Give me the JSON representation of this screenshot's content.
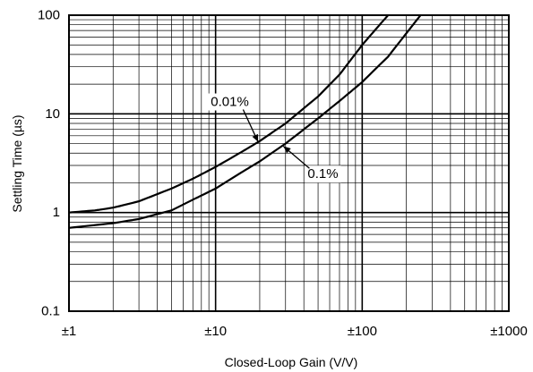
{
  "chart_data": {
    "type": "line",
    "title": "",
    "xlabel": "Closed-Loop Gain (V/V)",
    "ylabel": "Settling Time (µs)",
    "x_scale": "log",
    "y_scale": "log",
    "xlim": [
      1,
      1000
    ],
    "ylim": [
      0.1,
      100
    ],
    "grid": true,
    "x_ticks": [
      {
        "value": 1,
        "label": "±1"
      },
      {
        "value": 10,
        "label": "±10"
      },
      {
        "value": 100,
        "label": "±100"
      },
      {
        "value": 1000,
        "label": "±1000"
      }
    ],
    "y_ticks": [
      {
        "value": 0.1,
        "label": "0.1"
      },
      {
        "value": 1,
        "label": "1"
      },
      {
        "value": 10,
        "label": "10"
      },
      {
        "value": 100,
        "label": "100"
      }
    ],
    "series": [
      {
        "name": "0.01%",
        "x": [
          1,
          1.5,
          2,
          3,
          5,
          7,
          10,
          15,
          20,
          30,
          50,
          70,
          100,
          150
        ],
        "y": [
          1.0,
          1.05,
          1.12,
          1.3,
          1.75,
          2.2,
          2.9,
          4.1,
          5.3,
          8.0,
          15,
          25,
          50,
          100
        ]
      },
      {
        "name": "0.1%",
        "x": [
          1,
          2,
          3,
          5,
          7,
          10,
          15,
          20,
          30,
          50,
          70,
          100,
          150,
          250
        ],
        "y": [
          0.7,
          0.78,
          0.86,
          1.05,
          1.35,
          1.75,
          2.55,
          3.3,
          5.0,
          9.0,
          13.5,
          21,
          38,
          100
        ]
      }
    ],
    "annotations": [
      {
        "text": "0.01%",
        "series": "0.01%",
        "label_x": 12.5,
        "label_y": 13.2,
        "point_x": 19.5,
        "point_y": 5.2
      },
      {
        "text": "0.1%",
        "series": "0.1%",
        "label_x": 54,
        "label_y": 2.45,
        "point_x": 29,
        "point_y": 4.7
      }
    ]
  }
}
